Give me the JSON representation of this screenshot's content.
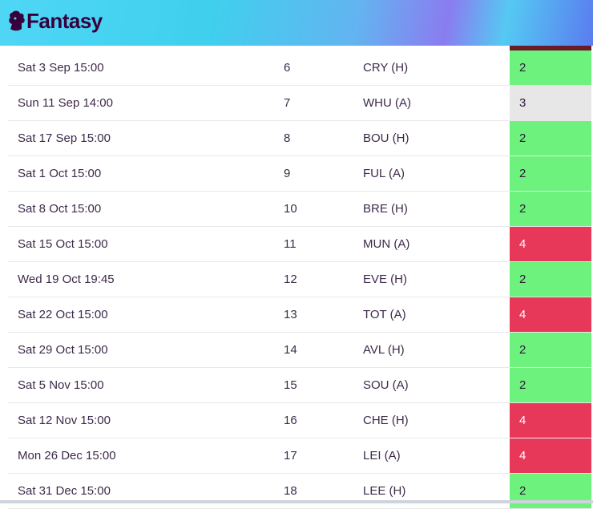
{
  "header": {
    "title": "Fantasy"
  },
  "table": {
    "rows": [
      [
        "Sat 3 Sep 15:00",
        "6",
        "CRY (H)",
        "2"
      ],
      [
        "Sun 11 Sep 14:00",
        "7",
        "WHU (A)",
        "3"
      ],
      [
        "Sat 17 Sep 15:00",
        "8",
        "BOU (H)",
        "2"
      ],
      [
        "Sat 1 Oct 15:00",
        "9",
        "FUL (A)",
        "2"
      ],
      [
        "Sat 8 Oct 15:00",
        "10",
        "BRE (H)",
        "2"
      ],
      [
        "Sat 15 Oct 15:00",
        "11",
        "MUN (A)",
        "4"
      ],
      [
        "Wed 19 Oct 19:45",
        "12",
        "EVE (H)",
        "2"
      ],
      [
        "Sat 22 Oct 15:00",
        "13",
        "TOT (A)",
        "4"
      ],
      [
        "Sat 29 Oct 15:00",
        "14",
        "AVL (H)",
        "2"
      ],
      [
        "Sat 5 Nov 15:00",
        "15",
        "SOU (A)",
        "2"
      ],
      [
        "Sat 12 Nov 15:00",
        "16",
        "CHE (H)",
        "4"
      ],
      [
        "Mon 26 Dec 15:00",
        "17",
        "LEI (A)",
        "4"
      ],
      [
        "Sat 31 Dec 15:00",
        "18",
        "LEE (H)",
        "2"
      ]
    ]
  }
}
